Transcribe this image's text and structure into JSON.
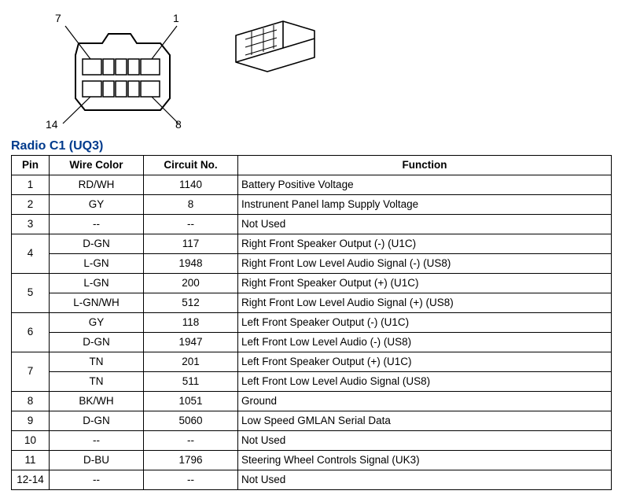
{
  "title": "Radio C1 (UQ3)",
  "title_color": "#003a8c",
  "pin_labels": {
    "top_right": "1",
    "top_left": "7",
    "bottom_right": "8",
    "bottom_left": "14"
  },
  "columns": [
    "Pin",
    "Wire Color",
    "Circuit No.",
    "Function"
  ],
  "column_align": [
    "center",
    "center",
    "center",
    "left"
  ],
  "border_color": "#000000",
  "font_size_pt": 10,
  "rows": [
    {
      "pin": "1",
      "rowspan": 1,
      "sub": [
        {
          "color": "RD/WH",
          "circuit": "1140",
          "func": "Battery Positive Voltage"
        }
      ]
    },
    {
      "pin": "2",
      "rowspan": 1,
      "sub": [
        {
          "color": "GY",
          "circuit": "8",
          "func": "Instrunent Panel lamp Supply Voltage"
        }
      ]
    },
    {
      "pin": "3",
      "rowspan": 1,
      "sub": [
        {
          "color": "--",
          "circuit": "--",
          "func": "Not Used"
        }
      ]
    },
    {
      "pin": "4",
      "rowspan": 2,
      "sub": [
        {
          "color": "D-GN",
          "circuit": "117",
          "func": "Right Front Speaker Output (-) (U1C)"
        },
        {
          "color": "L-GN",
          "circuit": "1948",
          "func": "Right Front Low Level Audio Signal (-) (US8)"
        }
      ]
    },
    {
      "pin": "5",
      "rowspan": 2,
      "sub": [
        {
          "color": "L-GN",
          "circuit": "200",
          "func": "Right Front Speaker Output (+) (U1C)"
        },
        {
          "color": "L-GN/WH",
          "circuit": "512",
          "func": "Right Front Low Level Audio Signal (+) (US8)"
        }
      ]
    },
    {
      "pin": "6",
      "rowspan": 2,
      "sub": [
        {
          "color": "GY",
          "circuit": "118",
          "func": "Left Front Speaker Output (-) (U1C)"
        },
        {
          "color": "D-GN",
          "circuit": "1947",
          "func": "Left Front Low Level Audio (-) (US8)"
        }
      ]
    },
    {
      "pin": "7",
      "rowspan": 2,
      "sub": [
        {
          "color": "TN",
          "circuit": "201",
          "func": "Left Front Speaker Output (+) (U1C)"
        },
        {
          "color": "TN",
          "circuit": "511",
          "func": "Left Front Low Level Audio Signal (US8)"
        }
      ]
    },
    {
      "pin": "8",
      "rowspan": 1,
      "sub": [
        {
          "color": "BK/WH",
          "circuit": "1051",
          "func": "Ground"
        }
      ]
    },
    {
      "pin": "9",
      "rowspan": 1,
      "sub": [
        {
          "color": "D-GN",
          "circuit": "5060",
          "func": "Low Speed GMLAN Serial Data"
        }
      ]
    },
    {
      "pin": "10",
      "rowspan": 1,
      "sub": [
        {
          "color": "--",
          "circuit": "--",
          "func": "Not Used"
        }
      ]
    },
    {
      "pin": "11",
      "rowspan": 1,
      "sub": [
        {
          "color": "D-BU",
          "circuit": "1796",
          "func": "Steering Wheel Controls Signal (UK3)"
        }
      ]
    },
    {
      "pin": "12-14",
      "rowspan": 1,
      "sub": [
        {
          "color": "--",
          "circuit": "--",
          "func": "Not Used"
        }
      ]
    }
  ]
}
